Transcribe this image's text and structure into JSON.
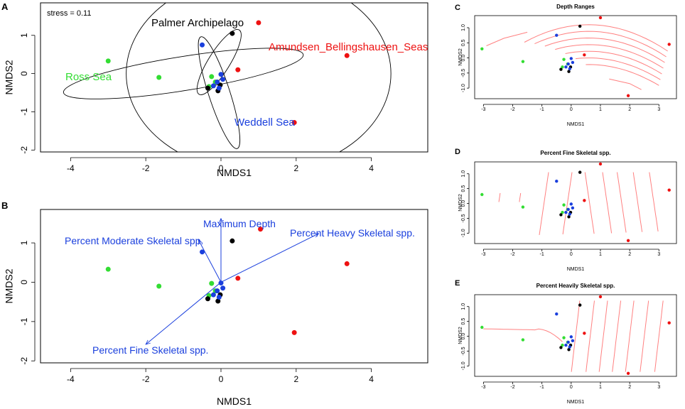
{
  "figure": {
    "panel_letters": [
      "A",
      "B",
      "C",
      "D",
      "E"
    ]
  },
  "chart_data": [
    {
      "panel": "A",
      "type": "scatter",
      "title": "",
      "xlabel": "NMDS1",
      "ylabel": "NMDS2",
      "xlim": [
        -4.8,
        5.5
      ],
      "ylim": [
        -2.05,
        1.85
      ],
      "xticks": [
        -4,
        -2,
        0,
        2,
        4
      ],
      "yticks": [
        -2,
        -1,
        0,
        1
      ],
      "annotation": "stress = 0.11",
      "series": [
        {
          "name": "Ross Sea",
          "color": "#33dd33",
          "points": [
            [
              -3.0,
              0.33
            ],
            [
              -1.65,
              -0.1
            ],
            [
              -0.25,
              -0.08
            ],
            [
              -0.15,
              -0.22
            ],
            [
              -0.32,
              -0.34
            ]
          ]
        },
        {
          "name": "Palmer Archipelago",
          "color": "#000000",
          "points": [
            [
              0.3,
              1.05
            ],
            [
              -0.35,
              -0.38
            ],
            [
              -0.08,
              -0.45
            ],
            [
              -0.02,
              -0.3
            ]
          ]
        },
        {
          "name": "Amundsen_Bellingshausen_Seas",
          "color": "#ee1111",
          "points": [
            [
              1.0,
              1.33
            ],
            [
              3.35,
              0.47
            ],
            [
              0.45,
              0.1
            ],
            [
              1.95,
              -1.28
            ]
          ]
        },
        {
          "name": "Weddell Sea",
          "color": "#1a3fdd",
          "points": [
            [
              -0.5,
              0.75
            ],
            [
              0.0,
              -0.02
            ],
            [
              -0.1,
              -0.22
            ],
            [
              -0.2,
              -0.32
            ],
            [
              0.05,
              -0.15
            ],
            [
              -0.05,
              -0.38
            ]
          ]
        }
      ],
      "ellipses": [
        {
          "group": "Ross Sea",
          "center": [
            -1.0,
            0.0
          ],
          "semi_axes": [
            3.2,
            0.45
          ],
          "angle_deg": -9
        },
        {
          "group": "Palmer Archipelago",
          "center": [
            -0.05,
            0.3
          ],
          "semi_axes": [
            1.0,
            0.28
          ],
          "angle_deg": -58
        },
        {
          "group": "Weddell Sea",
          "center": [
            -0.05,
            -0.5
          ],
          "semi_axes": [
            1.55,
            0.28
          ],
          "angle_deg": 72
        },
        {
          "group": "Amundsen_Bellingshausen_Seas",
          "center": [
            1.0,
            0.0
          ],
          "semi_axes": [
            4.0,
            1.85
          ],
          "angle_deg": 0
        }
      ],
      "group_labels": [
        {
          "text": "Palmer Archipelago",
          "color": "#000000"
        },
        {
          "text": "Amundsen_Bellingshausen_Seas",
          "color": "#ee1111"
        },
        {
          "text": "Ross Sea",
          "color": "#33dd33"
        },
        {
          "text": "Weddell Sea",
          "color": "#1a3fdd"
        }
      ]
    },
    {
      "panel": "B",
      "type": "scatter",
      "title": "",
      "xlabel": "NMDS1",
      "ylabel": "NMDS2",
      "xlim": [
        -4.8,
        5.5
      ],
      "ylim": [
        -2.05,
        1.85
      ],
      "xticks": [
        -4,
        -2,
        0,
        2,
        4
      ],
      "yticks": [
        -2,
        -1,
        0,
        1
      ],
      "series": [
        {
          "name": "Ross Sea",
          "color": "#33dd33",
          "points": [
            [
              -3.0,
              0.33
            ],
            [
              -1.65,
              -0.1
            ],
            [
              -0.25,
              -0.03
            ],
            [
              -0.15,
              -0.22
            ],
            [
              -0.32,
              -0.34
            ]
          ]
        },
        {
          "name": "Palmer Archipelago",
          "color": "#000000",
          "points": [
            [
              0.3,
              1.05
            ],
            [
              -0.35,
              -0.42
            ],
            [
              -0.08,
              -0.48
            ],
            [
              -0.02,
              -0.32
            ]
          ]
        },
        {
          "name": "Amundsen_Bellingshausen_Seas",
          "color": "#ee1111",
          "points": [
            [
              1.05,
              1.35
            ],
            [
              3.35,
              0.47
            ],
            [
              0.45,
              0.1
            ],
            [
              1.95,
              -1.28
            ]
          ]
        },
        {
          "name": "Weddell Sea",
          "color": "#1a3fdd",
          "points": [
            [
              -0.5,
              0.77
            ],
            [
              0.0,
              -0.02
            ],
            [
              -0.1,
              -0.22
            ],
            [
              -0.2,
              -0.32
            ],
            [
              0.05,
              -0.15
            ],
            [
              -0.05,
              -0.38
            ]
          ]
        }
      ],
      "vectors": [
        {
          "label": "Maximum Depth",
          "end": [
            0.0,
            1.62
          ]
        },
        {
          "label": "Percent Moderate Skeletal spp.",
          "end": [
            -0.6,
            1.08
          ]
        },
        {
          "label": "Percent Heavy Skeletal spp.",
          "end": [
            2.6,
            1.24
          ]
        },
        {
          "label": "Percent Fine Skeletal spp.",
          "end": [
            -2.0,
            -1.58
          ]
        }
      ],
      "vector_color": "#1a3fdd"
    },
    {
      "panel": "C",
      "type": "scatter",
      "title": "Depth Ranges",
      "xlabel": "NMDS1",
      "ylabel": "NMDS2",
      "xlim": [
        -3.3,
        3.6
      ],
      "ylim": [
        -1.35,
        1.4
      ],
      "xticks": [
        -3,
        -2,
        -1,
        0,
        1,
        2,
        3
      ],
      "yticks": [
        -1.0,
        -0.5,
        0.0,
        0.5,
        1.0
      ],
      "contour_color": "#ff8080",
      "overlay": "fitted contour lines (ordisurf)"
    },
    {
      "panel": "D",
      "type": "scatter",
      "title": "Percent Fine Skeletal spp.",
      "xlabel": "NMDS1",
      "ylabel": "NMDS2",
      "xlim": [
        -3.3,
        3.6
      ],
      "ylim": [
        -1.35,
        1.4
      ],
      "xticks": [
        -3,
        -2,
        -1,
        0,
        1,
        2,
        3
      ],
      "yticks": [
        -1.0,
        -0.5,
        0.0,
        0.5,
        1.0
      ],
      "contour_color": "#ff8080",
      "overlay": "fitted contour lines (ordisurf)"
    },
    {
      "panel": "E",
      "type": "scatter",
      "title": "Percent Heavily Skeletal spp.",
      "xlabel": "NMDS1",
      "ylabel": "NMDS2",
      "xlim": [
        -3.3,
        3.6
      ],
      "ylim": [
        -1.35,
        1.4
      ],
      "xticks": [
        -3,
        -2,
        -1,
        0,
        1,
        2,
        3
      ],
      "yticks": [
        -1.0,
        -0.5,
        0.0,
        0.5,
        1.0
      ],
      "contour_color": "#ff8080",
      "overlay": "fitted contour lines (ordisurf)"
    }
  ]
}
